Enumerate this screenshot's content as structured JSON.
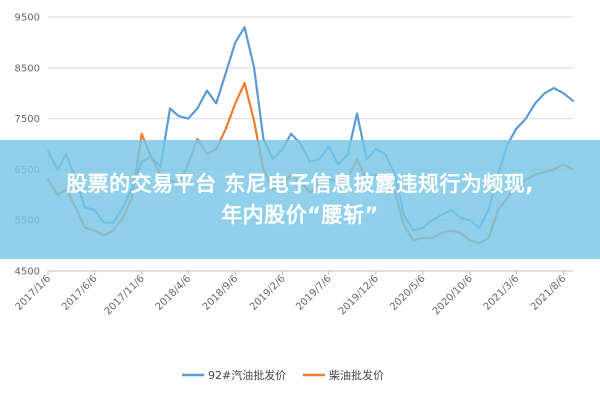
{
  "chart_data": {
    "type": "line",
    "x_tick_labels": [
      "2017/1/6",
      "2017/6/6",
      "2017/11/6",
      "2018/4/6",
      "2018/9/6",
      "2019/2/6",
      "2019/7/6",
      "2019/12/6",
      "2020/5/6",
      "2020/10/6",
      "2021/3/6",
      "2021/8/6"
    ],
    "ylim": [
      4500,
      9500
    ],
    "y_ticks": [
      4500,
      5500,
      6500,
      7500,
      8500,
      9500
    ],
    "grid": true,
    "legend_position": "bottom",
    "colors": {
      "gasoline": "#5b9bd5",
      "diesel": "#ed7d31",
      "grid": "#d9d9d9"
    },
    "series": [
      {
        "name": "92#汽油批发价",
        "x": [
          "2017/1/6",
          "2017/2/6",
          "2017/3/6",
          "2017/4/6",
          "2017/5/6",
          "2017/6/6",
          "2017/7/6",
          "2017/8/6",
          "2017/9/6",
          "2017/10/6",
          "2017/11/6",
          "2017/12/6",
          "2018/1/6",
          "2018/2/6",
          "2018/3/6",
          "2018/4/6",
          "2018/5/6",
          "2018/6/6",
          "2018/7/6",
          "2018/8/6",
          "2018/9/6",
          "2018/10/6",
          "2018/11/6",
          "2018/12/6",
          "2019/1/6",
          "2019/2/6",
          "2019/3/6",
          "2019/4/6",
          "2019/5/6",
          "2019/6/6",
          "2019/7/6",
          "2019/8/6",
          "2019/9/6",
          "2019/10/6",
          "2019/11/6",
          "2019/12/6",
          "2020/1/6",
          "2020/2/6",
          "2020/3/6",
          "2020/4/6",
          "2020/5/6",
          "2020/6/6",
          "2020/7/6",
          "2020/8/6",
          "2020/9/6",
          "2020/10/6",
          "2020/11/6",
          "2020/12/6",
          "2021/1/6",
          "2021/2/6",
          "2021/3/6",
          "2021/4/6",
          "2021/5/6",
          "2021/6/6",
          "2021/7/6",
          "2021/8/6",
          "2021/9/6"
        ],
        "values": [
          6850,
          6500,
          6800,
          6300,
          5750,
          5700,
          5450,
          5450,
          5750,
          6150,
          6650,
          6750,
          6550,
          7700,
          7550,
          7500,
          7700,
          8050,
          7800,
          8400,
          9000,
          9300,
          8500,
          7100,
          6700,
          6900,
          7200,
          7000,
          6650,
          6700,
          6950,
          6600,
          6800,
          7600,
          6700,
          6900,
          6800,
          6400,
          5600,
          5300,
          5350,
          5500,
          5600,
          5700,
          5550,
          5500,
          5350,
          5700,
          6400,
          7000,
          7300,
          7500,
          7800,
          8000,
          8100,
          8000,
          7850
        ]
      },
      {
        "name": "柴油批发价",
        "x": [
          "2017/1/6",
          "2017/2/6",
          "2017/3/6",
          "2017/4/6",
          "2017/5/6",
          "2017/6/6",
          "2017/7/6",
          "2017/8/6",
          "2017/9/6",
          "2017/10/6",
          "2017/11/6",
          "2017/12/6",
          "2018/1/6",
          "2018/2/6",
          "2018/3/6",
          "2018/4/6",
          "2018/5/6",
          "2018/6/6",
          "2018/7/6",
          "2018/8/6",
          "2018/9/6",
          "2018/10/6",
          "2018/11/6",
          "2018/12/6",
          "2019/1/6",
          "2019/2/6",
          "2019/3/6",
          "2019/4/6",
          "2019/5/6",
          "2019/6/6",
          "2019/7/6",
          "2019/8/6",
          "2019/9/6",
          "2019/10/6",
          "2019/11/6",
          "2019/12/6",
          "2020/1/6",
          "2020/2/6",
          "2020/3/6",
          "2020/4/6",
          "2020/5/6",
          "2020/6/6",
          "2020/7/6",
          "2020/8/6",
          "2020/9/6",
          "2020/10/6",
          "2020/11/6",
          "2020/12/6",
          "2021/1/6",
          "2021/2/6",
          "2021/3/6",
          "2021/4/6",
          "2021/5/6",
          "2021/6/6",
          "2021/7/6",
          "2021/8/6",
          "2021/9/6"
        ],
        "values": [
          6300,
          6000,
          6100,
          5750,
          5350,
          5300,
          5200,
          5300,
          5550,
          5950,
          7200,
          6750,
          6400,
          6300,
          6200,
          6600,
          7100,
          6800,
          6900,
          7300,
          7800,
          8200,
          7450,
          6500,
          6100,
          6200,
          6400,
          6250,
          6050,
          6200,
          6300,
          6250,
          6350,
          6700,
          6300,
          6400,
          6400,
          6050,
          5400,
          5100,
          5150,
          5150,
          5250,
          5300,
          5250,
          5100,
          5050,
          5150,
          5700,
          5950,
          6150,
          6300,
          6400,
          6450,
          6500,
          6600,
          6500
        ]
      }
    ]
  },
  "legend": [
    {
      "label": "92#汽油批发价",
      "color": "#5b9bd5"
    },
    {
      "label": "柴油批发价",
      "color": "#ed7d31"
    }
  ],
  "banner": {
    "line1": "股票的交易平台 东尼电子信息披露违规行为频现,",
    "line2": "年内股价“腰斩”"
  }
}
